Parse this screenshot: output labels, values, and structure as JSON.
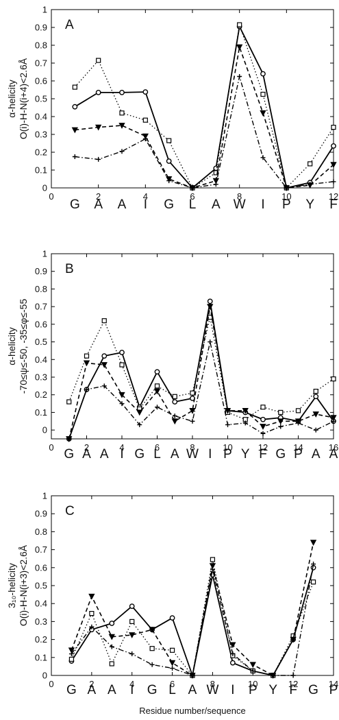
{
  "figure": {
    "xlabel": "Residue number/sequence"
  },
  "chart_data": [
    {
      "type": "line",
      "panel_label": "A",
      "ylabel_lines": [
        "α-helicity",
        "O(i)-H-N(i+4)<2.6Å"
      ],
      "xlim": [
        0,
        12
      ],
      "ylim": [
        0,
        1
      ],
      "xticks": [
        0,
        2,
        4,
        6,
        8,
        10,
        12
      ],
      "yticks": [
        0,
        0.1,
        0.2,
        0.3,
        0.4,
        0.5,
        0.6,
        0.7,
        0.8,
        0.9,
        1
      ],
      "sequence": [
        "G",
        "A",
        "A",
        "I",
        "G",
        "L",
        "A",
        "W",
        "I",
        "P",
        "Y",
        "F"
      ],
      "grid": false,
      "legend": "none",
      "x": [
        1,
        2,
        3,
        4,
        5,
        6,
        7,
        8,
        9,
        10,
        11,
        12
      ],
      "series": [
        {
          "style": "solid-circle",
          "values": [
            0.455,
            0.535,
            0.535,
            0.538,
            0.15,
            0.0,
            0.11,
            0.905,
            0.64,
            0.0,
            0.03,
            0.235
          ]
        },
        {
          "style": "dotted-square",
          "values": [
            0.565,
            0.715,
            0.42,
            0.38,
            0.265,
            0.0,
            0.085,
            0.915,
            0.525,
            0.0,
            0.135,
            0.34
          ]
        },
        {
          "style": "dashed-triangle",
          "values": [
            0.325,
            0.34,
            0.35,
            0.29,
            0.05,
            0.0,
            0.04,
            0.79,
            0.42,
            0.0,
            0.015,
            0.13
          ]
        },
        {
          "style": "dashdot-plus",
          "values": [
            0.175,
            0.16,
            0.205,
            0.275,
            0.04,
            0.0,
            0.02,
            0.625,
            0.17,
            0.0,
            0.02,
            0.035
          ]
        }
      ]
    },
    {
      "type": "line",
      "panel_label": "B",
      "ylabel_lines": [
        "α-helicity",
        "-70≤ψ≤-50, -35≤φ≤-55"
      ],
      "xlim": [
        0,
        16
      ],
      "ylim": [
        -0.05,
        1
      ],
      "xticks": [
        0,
        2,
        4,
        6,
        8,
        10,
        12,
        14,
        16
      ],
      "yticks": [
        0,
        0.1,
        0.2,
        0.3,
        0.4,
        0.5,
        0.6,
        0.7,
        0.8,
        0.9,
        1
      ],
      "sequence": [
        "G",
        "A",
        "A",
        "I",
        "G",
        "L",
        "A",
        "W",
        "I",
        "P",
        "Y",
        "F",
        "G",
        "P",
        "A",
        "A"
      ],
      "grid": false,
      "legend": "none",
      "x": [
        1,
        2,
        3,
        4,
        5,
        6,
        7,
        8,
        9,
        10,
        11,
        12,
        13,
        14,
        15,
        16
      ],
      "series": [
        {
          "style": "solid-circle",
          "values": [
            -0.05,
            0.23,
            0.42,
            0.44,
            0.13,
            0.33,
            0.16,
            0.18,
            0.73,
            0.11,
            0.1,
            0.06,
            0.07,
            0.05,
            0.19,
            0.05
          ]
        },
        {
          "style": "dotted-square",
          "values": [
            0.16,
            0.42,
            0.62,
            0.37,
            0.12,
            0.25,
            0.19,
            0.21,
            0.64,
            0.1,
            0.06,
            0.13,
            0.1,
            0.11,
            0.22,
            0.29
          ]
        },
        {
          "style": "dashed-triangle",
          "values": [
            -0.05,
            0.38,
            0.37,
            0.2,
            0.1,
            0.22,
            0.05,
            0.11,
            0.7,
            0.11,
            0.11,
            0.02,
            0.05,
            0.05,
            0.09,
            0.07
          ]
        },
        {
          "style": "dashdot-plus",
          "values": [
            -0.05,
            0.23,
            0.25,
            0.15,
            0.03,
            0.13,
            0.08,
            0.05,
            0.5,
            0.03,
            0.04,
            -0.02,
            0.02,
            0.04,
            0.0,
            0.05
          ]
        }
      ]
    },
    {
      "type": "line",
      "panel_label": "C",
      "ylabel_lines": [
        "3₁₀-helicity",
        "O(i)-H-N(i+3)<2.6Å"
      ],
      "xlim": [
        0,
        14
      ],
      "ylim": [
        0,
        1
      ],
      "xticks": [
        0,
        2,
        4,
        6,
        8,
        10,
        12,
        14
      ],
      "yticks": [
        0,
        0.1,
        0.2,
        0.3,
        0.4,
        0.5,
        0.6,
        0.7,
        0.8,
        0.9,
        1
      ],
      "sequence": [
        "G",
        "A",
        "A",
        "I",
        "G",
        "L",
        "A",
        "W",
        "I",
        "P",
        "Y",
        "F",
        "G",
        "P"
      ],
      "grid": false,
      "legend": "none",
      "x": [
        1,
        2,
        3,
        4,
        5,
        6,
        7,
        8,
        9,
        10,
        11,
        12,
        13
      ],
      "series": [
        {
          "style": "solid-circle",
          "values": [
            0.08,
            0.255,
            0.29,
            0.385,
            0.255,
            0.32,
            0.0,
            0.56,
            0.07,
            0.025,
            0.0,
            0.2,
            0.6
          ]
        },
        {
          "style": "dotted-square",
          "values": [
            0.09,
            0.345,
            0.065,
            0.3,
            0.15,
            0.14,
            0.0,
            0.645,
            0.11,
            0.025,
            0.0,
            0.22,
            0.52
          ]
        },
        {
          "style": "dashed-triangle",
          "values": [
            0.14,
            0.44,
            0.215,
            0.225,
            0.255,
            0.07,
            0.0,
            0.61,
            0.17,
            0.06,
            0.0,
            0.2,
            0.74
          ]
        },
        {
          "style": "dashdot-plus",
          "values": [
            0.12,
            0.27,
            0.16,
            0.12,
            0.06,
            0.04,
            0.0,
            0.59,
            0.12,
            0.025,
            0.0,
            0.0,
            0.62
          ]
        }
      ]
    }
  ]
}
